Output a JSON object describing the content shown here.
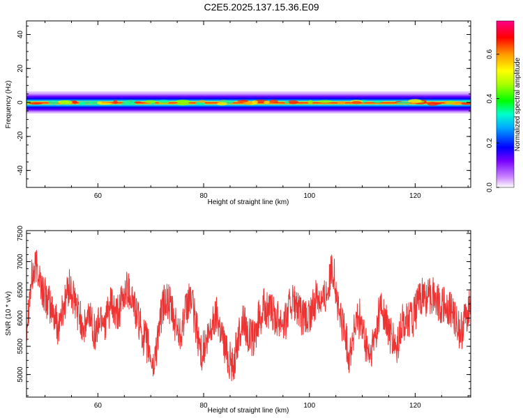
{
  "title": "C2E5.2025.137.15.36.E09",
  "colors": {
    "snr_line": "#ee3333",
    "frame": "#000000"
  },
  "chart_data": [
    {
      "type": "heatmap",
      "name": "spectrogram",
      "xlabel": "Height of straight line (km)",
      "ylabel": "Frequency (Hz)",
      "xlim": [
        46.5,
        130.5
      ],
      "ylim": [
        -50,
        48
      ],
      "xticks": [
        60,
        80,
        100,
        120
      ],
      "yticks": [
        -40,
        -20,
        0,
        20,
        40
      ],
      "grid": false,
      "colorbar": {
        "label": "Normalized spectral amplitude",
        "range": [
          0.0,
          0.75
        ],
        "ticks": [
          0.0,
          0.2,
          0.4,
          0.6
        ],
        "tick_labels": [
          "0.0",
          "0.2",
          "0.4",
          "0.6"
        ],
        "colormap": "rainbow (white-purple-blue-cyan-green-yellow-orange-red-magenta)"
      },
      "band": {
        "center_hz": 0,
        "half_width_hz": 3,
        "peak_amplitude": 0.72,
        "description": "narrow band centered near 0 Hz along full height range; red core near 0 Hz, fading to purple at about ±3 Hz"
      }
    },
    {
      "type": "line",
      "name": "snr",
      "xlabel": "Height of straight line (km)",
      "ylabel": "SNR (10 * v/v)",
      "xlim": [
        46.5,
        130.5
      ],
      "ylim": [
        4600,
        7550
      ],
      "xticks": [
        60,
        80,
        100,
        120
      ],
      "yticks": [
        5000,
        5500,
        6000,
        6500,
        7000,
        7500
      ],
      "grid": false,
      "series": [
        {
          "color": "#ee3333",
          "x": [
            46.5,
            47.5,
            48.5,
            49.5,
            50.5,
            51.5,
            52.5,
            53.5,
            54.5,
            55.5,
            56.5,
            57.5,
            58.5,
            59.5,
            60.5,
            61.5,
            62.5,
            63.5,
            64.5,
            65.5,
            66.5,
            67.5,
            68.5,
            69.5,
            70.5,
            71.5,
            72.5,
            73.5,
            74.5,
            75.5,
            76.5,
            77.5,
            78.5,
            79.5,
            80.5,
            81.5,
            82.5,
            83.5,
            84.5,
            85.5,
            86.5,
            87.5,
            88.5,
            89.5,
            90.5,
            91.5,
            92.5,
            93.5,
            94.5,
            95.5,
            96.5,
            97.5,
            98.5,
            99.5,
            100.5,
            101.5,
            102.5,
            103.5,
            104.5,
            105.5,
            106.5,
            107.5,
            108.5,
            109.5,
            110.5,
            111.5,
            112.5,
            113.5,
            114.5,
            115.5,
            116.5,
            117.5,
            118.5,
            119.5,
            120.5,
            121.5,
            122.5,
            123.5,
            124.5,
            125.5,
            126.5,
            127.5,
            128.5,
            129.5,
            130.5
          ],
          "values": [
            5900,
            6700,
            6950,
            6500,
            6300,
            6100,
            5850,
            6200,
            6550,
            6300,
            6050,
            5800,
            6100,
            5700,
            6050,
            5950,
            6250,
            6000,
            6250,
            6550,
            6350,
            6000,
            5700,
            5500,
            5100,
            5800,
            6300,
            6250,
            5900,
            5750,
            6050,
            6400,
            5900,
            5400,
            5500,
            5850,
            6100,
            5700,
            5350,
            5150,
            5600,
            6000,
            5700,
            5600,
            6000,
            6200,
            6100,
            6050,
            6000,
            5950,
            6300,
            6200,
            6000,
            5950,
            6100,
            6450,
            6300,
            6550,
            6900,
            6100,
            5850,
            5300,
            5800,
            6000,
            5550,
            5300,
            5700,
            6250,
            5900,
            5650,
            5400,
            5900,
            6000,
            5950,
            6250,
            6400,
            6350,
            6450,
            6250,
            6200,
            6150,
            6050,
            5700,
            6000,
            6300
          ]
        }
      ]
    }
  ]
}
